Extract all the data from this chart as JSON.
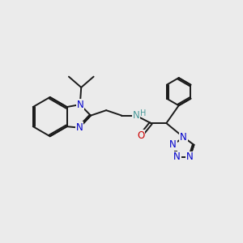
{
  "background_color": "#ebebeb",
  "bond_color": "#1a1a1a",
  "N_color": "#0000cc",
  "O_color": "#cc0000",
  "H_color": "#4a9999",
  "line_width": 1.4,
  "font_size": 8.5,
  "fig_width": 3.0,
  "fig_height": 3.0,
  "dpi": 100,
  "xlim": [
    0,
    10
  ],
  "ylim": [
    0,
    10
  ]
}
